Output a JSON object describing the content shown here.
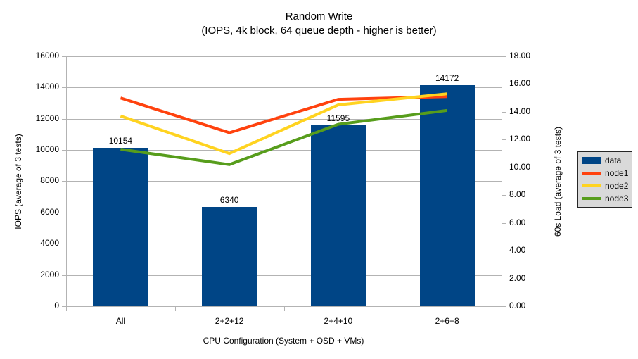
{
  "header": {
    "title": "Random Write",
    "subtitle": "(IOPS, 4k block, 64 queue depth - higher is better)"
  },
  "chart_data": {
    "type": "combo-bar-line",
    "title": "Random Write (IOPS, 4k block, 64 queue depth - higher is better)",
    "categories": [
      "All",
      "2+2+12",
      "2+4+10",
      "2+6+8"
    ],
    "xlabel": "CPU Configuration (System + OSD + VMs)",
    "bar_series": [
      {
        "name": "data",
        "axis": "left",
        "color": "#004586",
        "values": [
          10154,
          6340,
          11595,
          14172
        ],
        "data_labels": [
          "10154",
          "6340",
          "11595",
          "14172"
        ]
      }
    ],
    "line_series": [
      {
        "name": "node1",
        "axis": "right",
        "color": "#ff420e",
        "values": [
          15.0,
          12.5,
          14.9,
          15.1
        ]
      },
      {
        "name": "node2",
        "axis": "right",
        "color": "#ffd320",
        "values": [
          13.7,
          11.0,
          14.5,
          15.3
        ]
      },
      {
        "name": "node3",
        "axis": "right",
        "color": "#579d1c",
        "values": [
          11.3,
          10.2,
          13.1,
          14.1
        ]
      }
    ],
    "left_axis": {
      "label": "IOPS (average of 3 tests)",
      "range": [
        0,
        16000
      ],
      "step": 2000,
      "tick_labels": [
        "0",
        "2000",
        "4000",
        "6000",
        "8000",
        "10000",
        "12000",
        "14000",
        "16000"
      ]
    },
    "right_axis": {
      "label": "60s Load (average of 3 tests)",
      "range": [
        0,
        18
      ],
      "step": 2,
      "tick_labels": [
        "0.00",
        "2.00",
        "4.00",
        "6.00",
        "8.00",
        "10.00",
        "12.00",
        "14.00",
        "16.00",
        "18.00"
      ]
    },
    "legend": {
      "position": "right",
      "entries": [
        "data",
        "node1",
        "node2",
        "node3"
      ]
    },
    "grid": "horizontal"
  },
  "colors": {
    "bar_blue": "#004586",
    "node1_red": "#ff420e",
    "node2_yellow": "#ffd320",
    "node3_green": "#579d1c",
    "grid_gray": "#b3b3b3",
    "legend_bg": "#d9d9d9",
    "legend_border": "#262626",
    "text": "#000000",
    "background": "#ffffff"
  }
}
